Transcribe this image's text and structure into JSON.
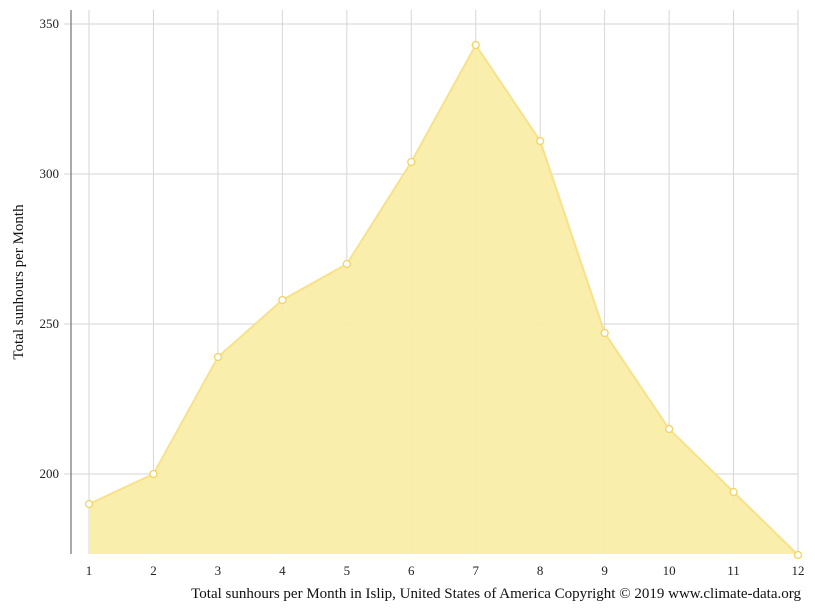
{
  "chart_data": {
    "type": "area",
    "x": [
      1,
      2,
      3,
      4,
      5,
      6,
      7,
      8,
      9,
      10,
      11,
      12
    ],
    "series": [
      {
        "values": [
          190,
          200,
          239,
          258,
          270,
          304,
          343,
          311,
          247,
          215,
          194,
          173
        ]
      }
    ],
    "title": "",
    "xlabel": "Total sunhours per Month in Islip, United States of America Copyright © 2019 www.climate-data.org",
    "ylabel": "Total sunhours per Month",
    "xlim": [
      1,
      12
    ],
    "ylim": [
      173,
      355
    ],
    "yticks": [
      200,
      250,
      300,
      350
    ],
    "grid": true,
    "colors": {
      "fill": "#faeda8",
      "line": "#f7e28a",
      "marker_fill": "#ffffff",
      "marker_stroke": "#f2d35e",
      "grid": "#d6d6d6"
    }
  }
}
